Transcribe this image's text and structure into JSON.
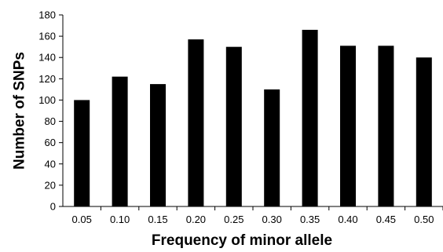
{
  "chart_data": {
    "type": "bar",
    "categories": [
      "0.05",
      "0.10",
      "0.15",
      "0.20",
      "0.25",
      "0.30",
      "0.35",
      "0.40",
      "0.45",
      "0.50"
    ],
    "values": [
      100,
      122,
      115,
      157,
      150,
      110,
      166,
      151,
      151,
      140
    ],
    "title": "",
    "xlabel": "Frequency of minor allele",
    "ylabel": "Number of SNPs",
    "ylim": [
      0,
      180
    ],
    "yticks": [
      0,
      20,
      40,
      60,
      80,
      100,
      120,
      140,
      160,
      180
    ],
    "grid": false,
    "legend": "none",
    "bar_color": "#000000",
    "axis_color": "#000000"
  }
}
